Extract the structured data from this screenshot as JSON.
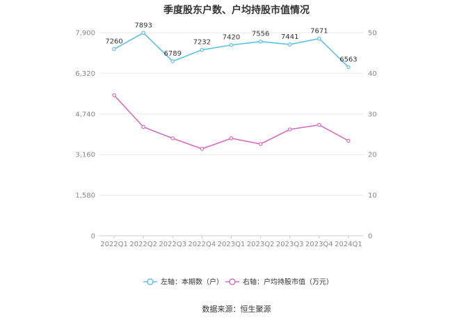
{
  "title": "季度股东户数、户均持股市值情况",
  "source": "数据来源：恒生聚源",
  "chart_data": {
    "type": "line",
    "title": "季度股东户数、户均持股市值情况",
    "categories": [
      "2022Q1",
      "2022Q2",
      "2022Q3",
      "2022Q4",
      "2023Q1",
      "2023Q2",
      "2023Q3",
      "2023Q4",
      "2024Q1"
    ],
    "y_left": {
      "ticks": [
        "0",
        "1,580",
        "3,160",
        "4,740",
        "6,320",
        "7,900"
      ],
      "ylim": [
        0,
        7900
      ]
    },
    "y_right": {
      "ticks": [
        "0",
        "10",
        "20",
        "30",
        "40",
        "50"
      ],
      "ylim": [
        0,
        50
      ]
    },
    "grid": true,
    "legend_position": "bottom",
    "series": [
      {
        "name": "左轴：本期数（户）",
        "axis": "left",
        "color": "#5bc0eb",
        "values": [
          7260,
          7893,
          6789,
          7232,
          7420,
          7556,
          7441,
          7671,
          6563
        ],
        "labels": [
          "7260",
          "7893",
          "6789",
          "7232",
          "7420",
          "7556",
          "7441",
          "7671",
          "6563"
        ]
      },
      {
        "name": "右轴：户均持股市值（万元）",
        "axis": "right",
        "color": "#d96bbd",
        "values": [
          34.6,
          26.8,
          24.0,
          21.4,
          24.0,
          22.6,
          26.2,
          27.3,
          23.4
        ]
      }
    ]
  }
}
